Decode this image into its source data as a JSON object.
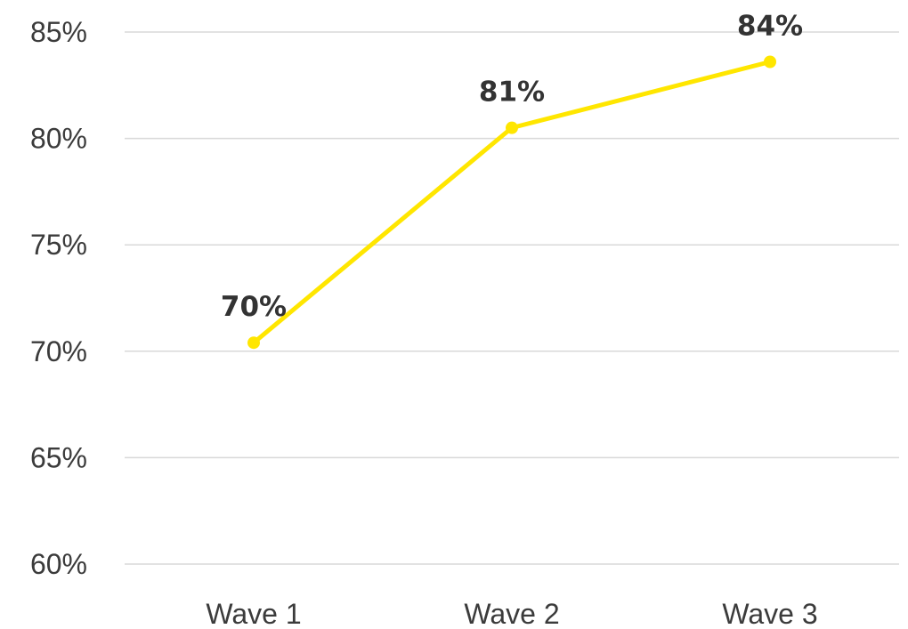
{
  "chart_data": {
    "type": "line",
    "title": "",
    "xlabel": "",
    "ylabel": "",
    "categories": [
      "Wave 1",
      "Wave 2",
      "Wave 3"
    ],
    "series": [
      {
        "values": [
          70.4,
          80.5,
          83.6
        ],
        "data_labels": [
          "70%",
          "81%",
          "84%"
        ]
      }
    ],
    "ylim": [
      60,
      85
    ],
    "y_ticks": [
      60,
      65,
      70,
      75,
      80,
      85
    ],
    "y_tick_labels": [
      "60%",
      "65%",
      "70%",
      "75%",
      "80%",
      "85%"
    ],
    "grid": true,
    "legend": "none",
    "colors": {
      "line": "#FFE600",
      "grid": "#d9d9d9",
      "tick_text": "#3b3b3b",
      "data_label_text": "#333333"
    }
  }
}
